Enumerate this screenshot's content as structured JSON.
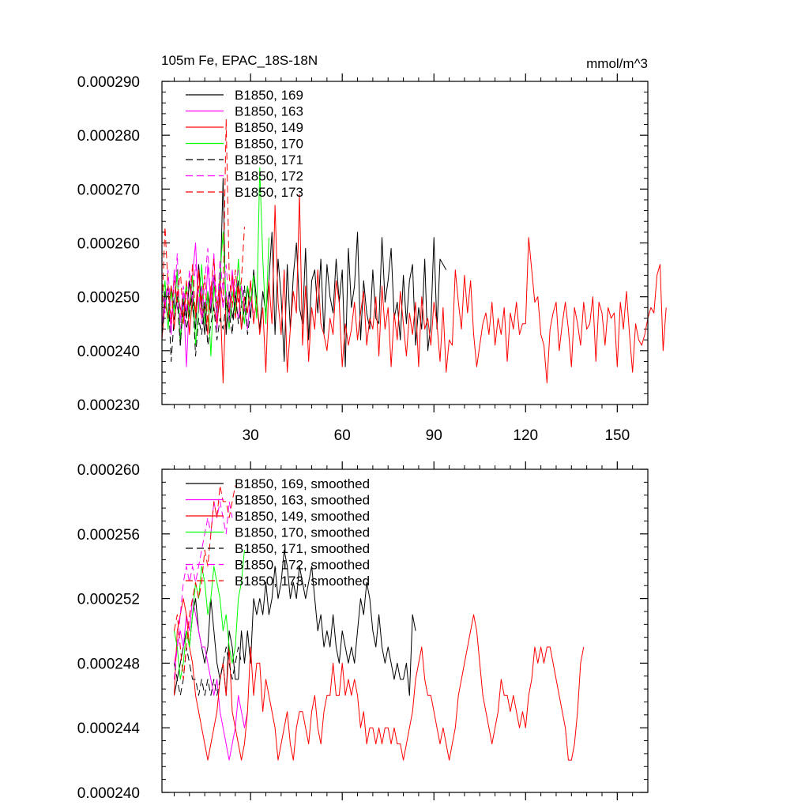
{
  "colors": {
    "black": "#000000",
    "magenta": "#ff00ff",
    "red": "#ff0000",
    "green": "#00ff00"
  },
  "chart_data": [
    {
      "type": "line",
      "title": "105m Fe, EPAC_18S-18N",
      "units": "mmol/m^3",
      "xlim": [
        1,
        160
      ],
      "ylim": [
        0.00023,
        0.00029
      ],
      "y_ticks": [
        "0.000230",
        "0.000240",
        "0.000250",
        "0.000260",
        "0.000270",
        "0.000280",
        "0.000290"
      ],
      "x_ticks": [
        "30",
        "60",
        "90",
        "120",
        "150"
      ],
      "legend_position": "top-left",
      "series": [
        {
          "name": "B1850, 169",
          "color": "black",
          "dashed": false,
          "x_start": 1,
          "values": [
            0.000244,
            0.000251,
            0.000246,
            0.000252,
            0.000248,
            0.000255,
            0.000241,
            0.00025,
            0.000246,
            0.000253,
            0.000248,
            0.000244,
            0.000256,
            0.000249,
            0.000243,
            0.000251,
            0.000247,
            0.000254,
            0.000245,
            0.00025,
            0.000272,
            0.000243,
            0.000251,
            0.000246,
            0.000249,
            0.000253,
            0.000244,
            0.000248,
            0.000252,
            0.000246,
            0.000255,
            0.000249,
            0.000244,
            0.000251,
            0.000247,
            0.000253,
            0.000262,
            0.000243,
            0.000257,
            0.00025,
            0.000238,
            0.000256,
            0.000244,
            0.000254,
            0.00026,
            0.000248,
            0.000245,
            0.000259,
            0.000242,
            0.000253,
            0.000255,
            0.000247,
            0.000257,
            0.000243,
            0.000256,
            0.00025,
            0.000247,
            0.000257,
            0.000249,
            0.000255,
            0.000237,
            0.000259,
            0.000248,
            0.000252,
            0.000262,
            0.000242,
            0.000253,
            0.000247,
            0.000244,
            0.000255,
            0.000246,
            0.000245,
            0.000261,
            0.000249,
            0.000253,
            0.000259,
            0.000246,
            0.000249,
            0.000242,
            0.000254,
            0.000245,
            0.000253,
            0.000256,
            0.000241,
            0.000248,
            0.000244,
            0.000257,
            0.00024,
            0.000245,
            0.000261,
            0.000244,
            0.000257,
            0.000256,
            0.000255
          ]
        },
        {
          "name": "B1850, 163",
          "color": "magenta",
          "dashed": false,
          "x_start": 1,
          "values": [
            0.000245,
            0.000249,
            0.000252,
            0.000243,
            0.000255,
            0.000248,
            0.000246,
            0.000251,
            0.000237,
            0.000249,
            0.000254,
            0.00026,
            0.000247,
            0.000252,
            0.000245,
            0.000256,
            0.000249,
            0.000258,
            0.000244,
            0.000253,
            0.000248,
            0.000251,
            0.000245,
            0.000255,
            0.000249,
            0.000246,
            0.000252,
            0.000248,
            0.000244,
            0.00025,
            0.000247
          ]
        },
        {
          "name": "B1850, 149",
          "color": "red",
          "dashed": false,
          "x_start": 1,
          "values": [
            0.000242,
            0.000249,
            0.000246,
            0.000252,
            0.000244,
            0.000251,
            0.000248,
            0.000245,
            0.000253,
            0.000243,
            0.00025,
            0.000247,
            0.000255,
            0.000246,
            0.000249,
            0.000243,
            0.000252,
            0.000248,
            0.000245,
            0.000251,
            0.000234,
            0.00025,
            0.000247,
            0.000254,
            0.000246,
            0.000252,
            0.000244,
            0.00025,
            0.000247,
            0.000253,
            0.000245,
            0.00025,
            0.000243,
            0.000248,
            0.000236,
            0.000253,
            0.000245,
            0.000267,
            0.000249,
            0.000243,
            0.000255,
            0.000236,
            0.000244,
            0.000251,
            0.000247,
            0.000269,
            0.000241,
            0.000252,
            0.000238,
            0.000248,
            0.000244,
            0.000255,
            0.000245,
            0.000243,
            0.00024,
            0.000246,
            0.000243,
            0.000253,
            0.000249,
            0.000237,
            0.000245,
            0.000241,
            0.000244,
            0.000249,
            0.000242,
            0.000247,
            0.000251,
            0.000241,
            0.000246,
            0.000244,
            0.00025,
            0.000239,
            0.000252,
            0.000244,
            0.000248,
            0.000237,
            0.000247,
            0.000242,
            0.000251,
            0.000245,
            0.000239,
            0.000247,
            0.000243,
            0.000249,
            0.000237,
            0.00025,
            0.000244,
            0.000246,
            0.000241,
            0.000249,
            0.000245,
            0.000238,
            0.000248,
            0.000236,
            0.000242,
            0.000241,
            0.000255,
            0.000249,
            0.000244,
            0.000254,
            0.000247,
            0.000253,
            0.000243,
            0.000237,
            0.000241,
            0.000245,
            0.000247,
            0.000243,
            0.000249,
            0.000241,
            0.000246,
            0.000243,
            0.000248,
            0.000238,
            0.000247,
            0.000244,
            0.000249,
            0.000243,
            0.000245,
            0.000245,
            0.000261,
            0.000255,
            0.000249,
            0.00025,
            0.000243,
            0.000241,
            0.000234,
            0.000244,
            0.000247,
            0.000249,
            0.00024,
            0.000245,
            0.000249,
            0.000244,
            0.000237,
            0.000248,
            0.000245,
            0.000241,
            0.000249,
            0.000244,
            0.000245,
            0.00025,
            0.000238,
            0.000249,
            0.000247,
            0.000241,
            0.000248,
            0.000246,
            0.000247,
            0.000237,
            0.000249,
            0.000244,
            0.000251,
            0.000243,
            0.000236,
            0.000245,
            0.000242,
            0.000241,
            0.000243,
            0.000246,
            0.000248,
            0.000247,
            0.000254,
            0.000256,
            0.00024,
            0.000248
          ]
        },
        {
          "name": "B1850, 170",
          "color": "green",
          "dashed": false,
          "x_start": 1,
          "values": [
            0.000248,
            0.000253,
            0.000244,
            0.000251,
            0.000247,
            0.000255,
            0.000242,
            0.000249,
            0.000252,
            0.000246,
            0.000254,
            0.000241,
            0.000248,
            0.000256,
            0.000245,
            0.000251,
            0.000239,
            0.000252,
            0.000247,
            0.000254,
            0.000262,
            0.000249,
            0.000244,
            0.000251,
            0.000247,
            0.000257,
            0.000249,
            0.000245,
            0.000252,
            0.000249,
            0.000254,
            0.000246,
            0.000274,
            0.000257,
            0.000245,
            0.000261
          ]
        },
        {
          "name": "B1850, 171",
          "color": "black",
          "dashed": true,
          "x_start": 1,
          "values": [
            0.000243,
            0.000248,
            0.000252,
            0.000238,
            0.000246,
            0.00025,
            0.000241,
            0.000249,
            0.000244,
            0.000247,
            0.000251,
            0.000239,
            0.000246,
            0.000243,
            0.000249,
            0.000241,
            0.000245,
            0.000248,
            0.000242,
            0.000246,
            0.000244,
            0.000249,
            0.000247,
            0.000243,
            0.000251,
            0.000245,
            0.000248,
            0.000252,
            0.000243,
            0.000247
          ]
        },
        {
          "name": "B1850, 172",
          "color": "magenta",
          "dashed": true,
          "x_start": 1,
          "values": [
            0.000252,
            0.000247,
            0.000255,
            0.000246,
            0.000249,
            0.000258,
            0.000244,
            0.000252,
            0.000247,
            0.000255,
            0.000249,
            0.000256,
            0.000251,
            0.000245,
            0.000253,
            0.000259,
            0.000248,
            0.000254,
            0.000246,
            0.000257,
            0.000251,
            0.000256,
            0.000248,
            0.000253,
            0.000251,
            0.000255
          ]
        },
        {
          "name": "B1850, 173",
          "color": "red",
          "dashed": true,
          "x_start": 1,
          "values": [
            0.000247,
            0.000263,
            0.000252,
            0.000245,
            0.000253,
            0.000249,
            0.000255,
            0.000246,
            0.000251,
            0.000248,
            0.000256,
            0.000246,
            0.000252,
            0.000249,
            0.000254,
            0.000245,
            0.000251,
            0.000257,
            0.000248,
            0.000253,
            0.000249,
            0.000283,
            0.000254,
            0.000248,
            0.000255,
            0.000249,
            0.000253,
            0.000263
          ]
        }
      ]
    },
    {
      "type": "line",
      "xlim": [
        1,
        160
      ],
      "ylim": [
        0.00024,
        0.00026
      ],
      "y_ticks": [
        "0.000240",
        "0.000244",
        "0.000248",
        "0.000252",
        "0.000256",
        "0.000260"
      ],
      "x_ticks": [
        30,
        60,
        90,
        120,
        150
      ],
      "x_tick_labels_shown": false,
      "legend_position": "top-left",
      "series": [
        {
          "name": "B1850, 169, smoothed",
          "color": "black",
          "dashed": false,
          "x_start": 5,
          "values": [
            0.000246,
            0.000247,
            0.000248,
            0.000249,
            0.00025,
            0.000249,
            0.000251,
            0.000252,
            0.00025,
            0.000249,
            0.000248,
            0.000249,
            0.000252,
            0.00025,
            0.000248,
            0.000247,
            0.000248,
            0.000246,
            0.00025,
            0.000249,
            0.000247,
            0.000247,
            0.00025,
            0.000248,
            0.00025,
            0.000248,
            0.000252,
            0.000251,
            0.000252,
            0.000251,
            0.000253,
            0.000251,
            0.000252,
            0.000254,
            0.000252,
            0.000253,
            0.000255,
            0.000254,
            0.000252,
            0.000253,
            0.000252,
            0.000254,
            0.000253,
            0.000252,
            0.000253,
            0.000254,
            0.000252,
            0.00025,
            0.000251,
            0.000249,
            0.00025,
            0.000249,
            0.000251,
            0.000249,
            0.000248,
            0.00025,
            0.000249,
            0.000248,
            0.000249,
            0.000248,
            0.00025,
            0.000252,
            0.000251,
            0.000253,
            0.000252,
            0.00025,
            0.000249,
            0.000251,
            0.000249,
            0.000248,
            0.000249,
            0.000248,
            0.000247,
            0.000248,
            0.000247,
            0.000247,
            0.000248,
            0.000246,
            0.000251,
            0.00025
          ]
        },
        {
          "name": "B1850, 163, smoothed",
          "color": "magenta",
          "dashed": false,
          "x_start": 5,
          "values": [
            0.000248,
            0.000249,
            0.00025,
            0.000249,
            0.000251,
            0.00025,
            0.000252,
            0.000251,
            0.00025,
            0.000249,
            0.000249,
            0.000248,
            0.000247,
            0.000246,
            0.000247,
            0.000245,
            0.000244,
            0.000243,
            0.000242,
            0.000243,
            0.000244,
            0.000246,
            0.000245,
            0.000244,
            0.000245
          ]
        },
        {
          "name": "B1850, 149, smoothed",
          "color": "red",
          "dashed": false,
          "x_start": 5,
          "values": [
            0.000246,
            0.00025,
            0.000251,
            0.000252,
            0.000251,
            0.000249,
            0.000248,
            0.000246,
            0.000245,
            0.000244,
            0.000243,
            0.000242,
            0.000243,
            0.000244,
            0.000245,
            0.000247,
            0.000248,
            0.000246,
            0.000249,
            0.000245,
            0.000244,
            0.000243,
            0.000242,
            0.000243,
            0.000245,
            0.000249,
            0.000246,
            0.000248,
            0.000248,
            0.000245,
            0.000247,
            0.000246,
            0.000245,
            0.000244,
            0.000242,
            0.000243,
            0.000244,
            0.000245,
            0.000243,
            0.000242,
            0.000244,
            0.000245,
            0.000245,
            0.000244,
            0.000243,
            0.000245,
            0.000246,
            0.000244,
            0.000243,
            0.000245,
            0.000246,
            0.000246,
            0.000248,
            0.000246,
            0.000246,
            0.000248,
            0.000246,
            0.000247,
            0.000246,
            0.000247,
            0.000246,
            0.000244,
            0.000245,
            0.000243,
            0.000244,
            0.000244,
            0.000243,
            0.000244,
            0.000243,
            0.000244,
            0.000244,
            0.000243,
            0.000244,
            0.000243,
            0.000243,
            0.000242,
            0.000243,
            0.000244,
            0.000245,
            0.000247,
            0.000248,
            0.000249,
            0.000247,
            0.000246,
            0.000246,
            0.000245,
            0.000244,
            0.000243,
            0.000244,
            0.000243,
            0.000242,
            0.000243,
            0.000244,
            0.000246,
            0.000247,
            0.000248,
            0.000249,
            0.00025,
            0.000251,
            0.00025,
            0.000248,
            0.000246,
            0.000245,
            0.000244,
            0.000243,
            0.000244,
            0.000245,
            0.000247,
            0.000246,
            0.000246,
            0.000245,
            0.000246,
            0.000245,
            0.000244,
            0.000245,
            0.000244,
            0.000246,
            0.000247,
            0.000249,
            0.000248,
            0.000249,
            0.000248,
            0.000249,
            0.000249,
            0.000248,
            0.000247,
            0.000246,
            0.000245,
            0.000244,
            0.000242,
            0.000242,
            0.000243,
            0.000245,
            0.000248,
            0.000249
          ]
        },
        {
          "name": "B1850, 170, smoothed",
          "color": "green",
          "dashed": false,
          "x_start": 5,
          "values": [
            0.00025,
            0.000249,
            0.000247,
            0.000248,
            0.00025,
            0.000249,
            0.000251,
            0.000253,
            0.000252,
            0.000254,
            0.000253,
            0.000251,
            0.000252,
            0.000254,
            0.000253,
            0.000252,
            0.00025,
            0.000251,
            0.000249,
            0.000248,
            0.000249,
            0.000252,
            0.000253,
            0.000255
          ]
        },
        {
          "name": "B1850, 171, smoothed",
          "color": "black",
          "dashed": true,
          "x_start": 5,
          "values": [
            0.000248,
            0.000247,
            0.000246,
            0.000247,
            0.000249,
            0.000248,
            0.000247,
            0.000247,
            0.000246,
            0.000247,
            0.000246,
            0.000247,
            0.000246,
            0.000247,
            0.000246,
            0.000247,
            0.000248,
            0.000249,
            0.000248,
            0.000247,
            0.000248,
            0.000249,
            0.000248
          ]
        },
        {
          "name": "B1850, 172, smoothed",
          "color": "magenta",
          "dashed": true,
          "x_start": 5,
          "values": [
            0.000247,
            0.000249,
            0.000251,
            0.000253,
            0.000254,
            0.000253,
            0.000254,
            0.000253,
            0.000254,
            0.000255,
            0.000256,
            0.000257,
            0.000256,
            0.000258,
            0.000257,
            0.000258,
            0.000257,
            0.000256,
            0.000258,
            0.000257
          ]
        },
        {
          "name": "B1850, 173, smoothed",
          "color": "red",
          "dashed": true,
          "x_start": 5,
          "values": [
            0.00025,
            0.000251,
            0.000249,
            0.000247,
            0.000249,
            0.000251,
            0.000252,
            0.000253,
            0.000252,
            0.000253,
            0.000255,
            0.000254,
            0.000256,
            0.000258,
            0.000257,
            0.000259,
            0.000258,
            0.000258,
            0.000257,
            0.000258,
            0.000259
          ]
        }
      ]
    }
  ]
}
